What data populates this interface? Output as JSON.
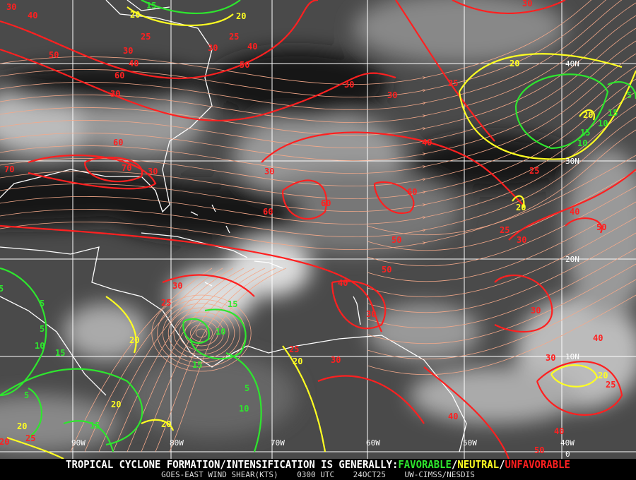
{
  "footer": {
    "headline": "TROPICAL CYCLONE FORMATION/INTENSIFICATION IS GENERALLY:",
    "favorable": "FAVORABLE",
    "sep1": "/",
    "neutral": "NEUTRAL",
    "sep2": "/",
    "unfavorable": "UNFAVORABLE",
    "product": "GOES-EAST WIND SHEAR(KTS)",
    "time": "0300 UTC",
    "date": "24OCT25",
    "source": "UW-CIMSS/NESDIS"
  },
  "grid": {
    "longitude_labels": [
      "90W",
      "80W",
      "70W",
      "60W",
      "50W",
      "40W"
    ],
    "latitude_labels": [
      "40N",
      "30N",
      "20N",
      "10N",
      "0"
    ]
  },
  "colors": {
    "favorable": "#2ee62e",
    "neutral": "#ffff22",
    "unfavorable": "#ff2020",
    "streamlines": "#f4a98a",
    "coastline": "#ffffff",
    "grid": "#ffffff"
  },
  "contour_labels": {
    "red": [
      "40",
      "30",
      "25",
      "30",
      "40",
      "50",
      "60",
      "30",
      "60",
      "70",
      "70",
      "30",
      "30",
      "60",
      "60",
      "40",
      "60",
      "30",
      "30",
      "25",
      "25",
      "40",
      "50",
      "25",
      "30",
      "50",
      "50",
      "40",
      "30",
      "30",
      "40",
      "30",
      "25",
      "30",
      "25",
      "25",
      "30",
      "40",
      "40",
      "50",
      "25",
      "20",
      "50",
      "40",
      "25",
      "30",
      "30"
    ],
    "yellow": [
      "20",
      "20",
      "20",
      "20",
      "20",
      "20",
      "20",
      "20",
      "20",
      "20",
      "20"
    ],
    "green": [
      "15",
      "5",
      "5",
      "5",
      "10",
      "15",
      "10",
      "15",
      "15",
      "5",
      "10",
      "15",
      "5",
      "10",
      "15",
      "10",
      "15",
      "5"
    ]
  }
}
